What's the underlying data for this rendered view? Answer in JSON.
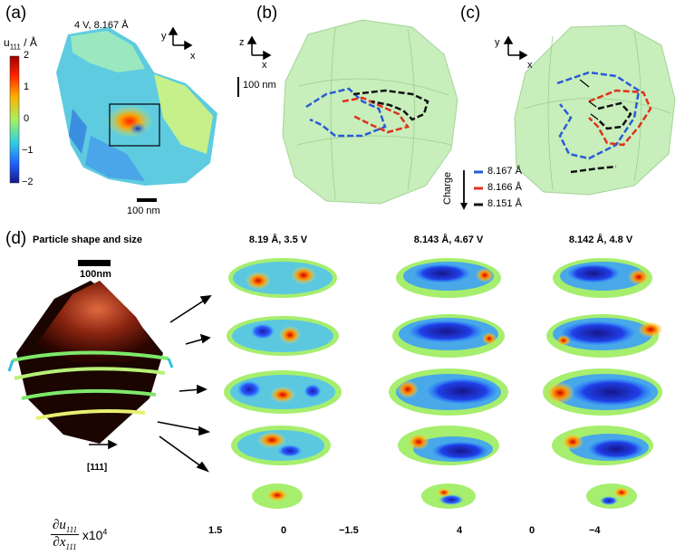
{
  "panels": {
    "a": {
      "label": "(a)",
      "title": "4 V, 8.167 Å",
      "colorbar_label_main": "u",
      "colorbar_label_sub": "111",
      "colorbar_label_unit": " / Å",
      "colorbar_ticks": [
        "2",
        "1",
        "0",
        "−1",
        "−2"
      ],
      "scale_bar": "100 nm",
      "axis_y": "y",
      "axis_x": "x"
    },
    "b": {
      "label": "(b)",
      "axis_z": "z",
      "axis_x": "x",
      "scale_bar": "100 nm"
    },
    "c": {
      "label": "(c)",
      "axis_y": "y",
      "axis_x": "x",
      "legend_title": "Charge",
      "legend": [
        {
          "label": "8.167 Å",
          "color": "#2a5bd7"
        },
        {
          "label": "8.166 Å",
          "color": "#e0301e"
        },
        {
          "label": "8.151 Å",
          "color": "#111111"
        }
      ]
    },
    "d": {
      "label": "(d)",
      "shape_title": "Particle shape and size",
      "scale_bar": "100nm",
      "direction": "[111]",
      "columns": [
        "8.19 Å, 3.5 V",
        "8.143 Å, 4.67 V",
        "8.142 Å, 4.8 V"
      ],
      "formula_num": "∂u",
      "formula_num_sub": "111",
      "formula_den": "∂x",
      "formula_den_sub": "111",
      "formula_factor": "x10",
      "formula_exp": "4",
      "colorbar1_ticks": [
        "1.5",
        "0",
        "−1.5"
      ],
      "colorbar2_ticks": [
        "4",
        "0",
        "−4"
      ]
    }
  },
  "colors": {
    "jet_red": "#9e0000",
    "jet_blue": "#16168c",
    "particle_green": "#b6e6a8"
  }
}
